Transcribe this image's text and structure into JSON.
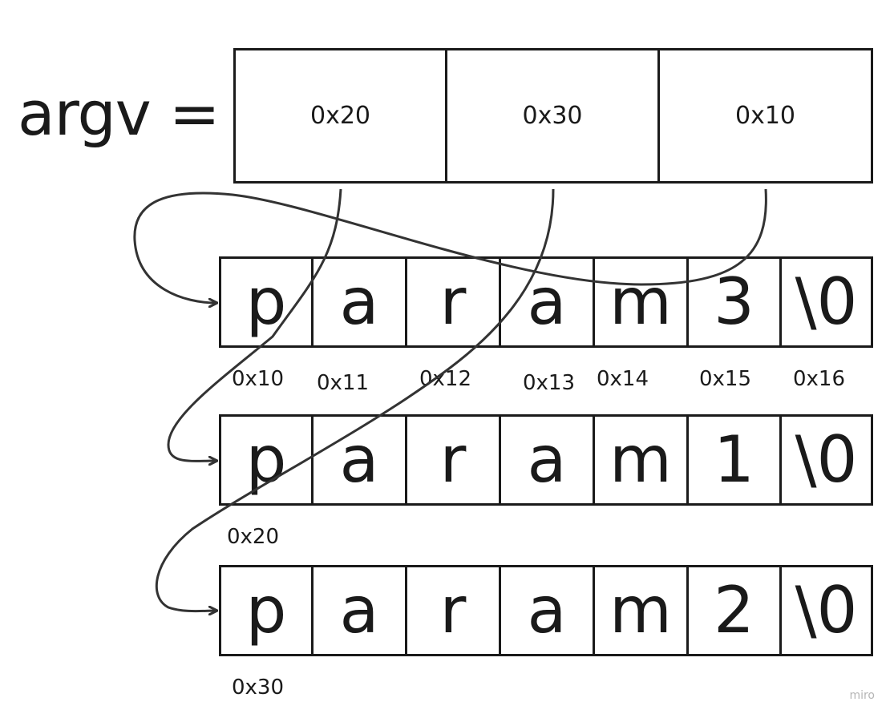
{
  "argv_label": "argv =",
  "pointers": [
    "0x20",
    "0x30",
    "0x10"
  ],
  "strings": [
    {
      "chars": [
        "p",
        "a",
        "r",
        "a",
        "m",
        "3",
        "\\0"
      ],
      "addresses": [
        "0x10",
        "0x11",
        "0x12",
        "0x13",
        "0x14",
        "0x15",
        "0x16"
      ]
    },
    {
      "chars": [
        "p",
        "a",
        "r",
        "a",
        "m",
        "1",
        "\\0"
      ],
      "addresses": [
        "0x20"
      ]
    },
    {
      "chars": [
        "p",
        "a",
        "r",
        "a",
        "m",
        "2",
        "\\0"
      ],
      "addresses": [
        "0x30"
      ]
    }
  ],
  "watermark": "miro"
}
